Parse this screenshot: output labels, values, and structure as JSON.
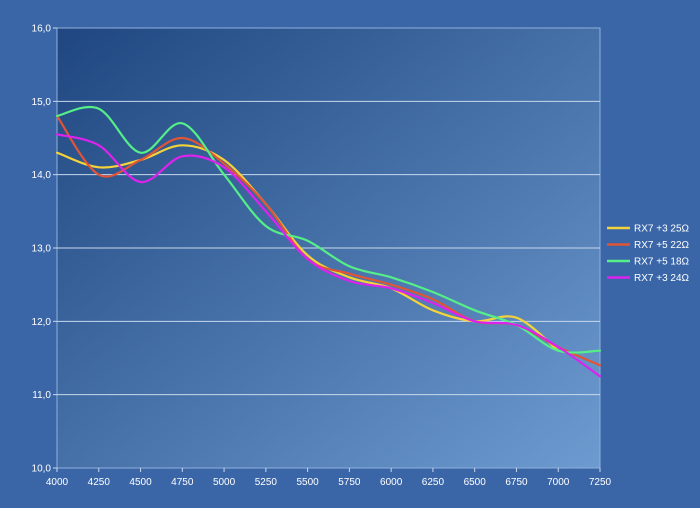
{
  "chart_data": {
    "type": "line",
    "title": "",
    "xlabel": "",
    "ylabel": "",
    "xlim": [
      4000,
      7250
    ],
    "ylim": [
      10.0,
      16.0
    ],
    "x_ticks": [
      "4000",
      "4250",
      "4500",
      "4750",
      "5000",
      "5250",
      "5500",
      "5750",
      "6000",
      "6250",
      "6500",
      "6750",
      "7000",
      "7250"
    ],
    "y_ticks": [
      "10,0",
      "11,0",
      "12,0",
      "13,0",
      "14,0",
      "15,0",
      "16,0"
    ],
    "grid": "horizontal",
    "legend_position": "right",
    "series": [
      {
        "name": "RX7 +3 25Ω",
        "color": "#f4d23a",
        "x": [
          4000,
          4250,
          4500,
          4750,
          5000,
          5250,
          5500,
          5750,
          6000,
          6250,
          6500,
          6750,
          7000
        ],
        "y": [
          14.3,
          14.1,
          14.2,
          14.4,
          14.2,
          13.6,
          12.9,
          12.6,
          12.45,
          12.15,
          12.0,
          12.05,
          11.6
        ]
      },
      {
        "name": "RX7 +5 22Ω",
        "color": "#e05536",
        "x": [
          4000,
          4250,
          4500,
          4750,
          5000,
          5250,
          5500,
          5750,
          6000,
          6250,
          6500,
          6750,
          7000,
          7250
        ],
        "y": [
          14.8,
          14.0,
          14.2,
          14.5,
          14.15,
          13.6,
          12.85,
          12.65,
          12.5,
          12.3,
          12.0,
          11.95,
          11.65,
          11.4
        ]
      },
      {
        "name": "RX7 +5 18Ω",
        "color": "#55ee88",
        "x": [
          4000,
          4250,
          4500,
          4750,
          5000,
          5250,
          5500,
          5750,
          6000,
          6250,
          6500,
          6750,
          7000,
          7250
        ],
        "y": [
          14.8,
          14.9,
          14.3,
          14.7,
          14.0,
          13.3,
          13.1,
          12.75,
          12.6,
          12.4,
          12.15,
          11.95,
          11.6,
          11.6
        ]
      },
      {
        "name": "RX7 +3 24Ω",
        "color": "#dd22ee",
        "x": [
          4000,
          4250,
          4500,
          4750,
          5000,
          5250,
          5500,
          5750,
          6000,
          6250,
          6500,
          6750,
          7000,
          7250
        ],
        "y": [
          14.55,
          14.4,
          13.9,
          14.25,
          14.1,
          13.5,
          12.85,
          12.55,
          12.45,
          12.25,
          12.0,
          11.95,
          11.65,
          11.25
        ]
      }
    ]
  }
}
